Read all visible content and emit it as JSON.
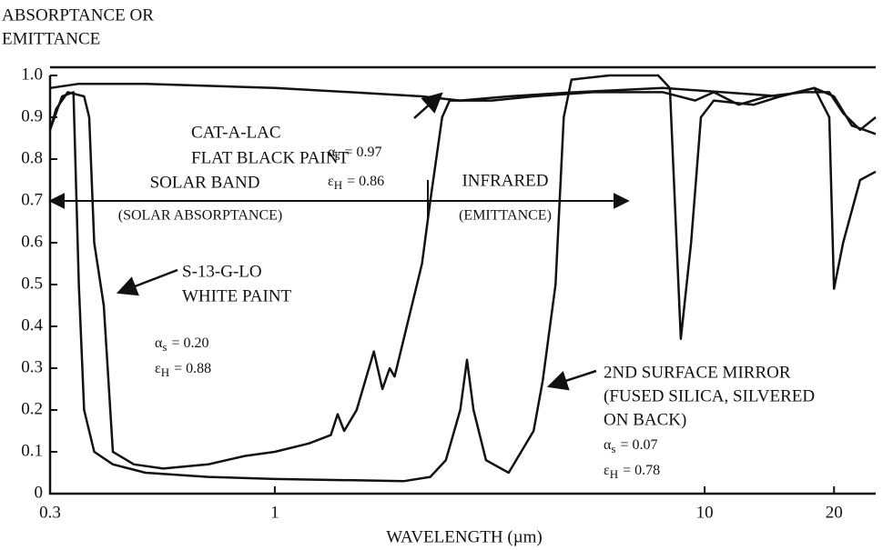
{
  "chart_data": {
    "type": "line",
    "y_label_lines": [
      "ABSORPTANCE OR",
      "EMITTANCE"
    ],
    "x_label": "WAVELENGTH (µm)",
    "x_log": true,
    "xlim": [
      0.3,
      25
    ],
    "xticks": [
      0.3,
      1,
      10,
      20
    ],
    "ylim": [
      0,
      1
    ],
    "yticks": [
      0,
      0.1,
      0.2,
      0.3,
      0.4,
      0.5,
      0.6,
      0.7,
      0.8,
      0.9,
      {
        "value": 1,
        "label": "1.0"
      }
    ],
    "series": [
      {
        "label_lines": [
          "CAT-A-LAC",
          "FLAT BLACK PAINT"
        ],
        "color": "#111111",
        "props": [
          {
            "symbol": "α",
            "sub": "s",
            "text": "= 0.97"
          },
          {
            "symbol": "ε",
            "sub": "H",
            "text": "= 0.86"
          }
        ],
        "x": [
          0.3,
          0.35,
          0.5,
          1,
          1.5,
          2.2,
          2.7,
          3.5,
          5,
          8,
          11,
          15,
          18,
          20,
          22,
          23.5,
          25
        ],
        "values": [
          0.97,
          0.98,
          0.98,
          0.97,
          0.96,
          0.95,
          0.94,
          0.95,
          0.96,
          0.97,
          0.96,
          0.95,
          0.97,
          0.95,
          0.88,
          0.87,
          0.86
        ]
      },
      {
        "label_lines": [
          "S-13-G-LO",
          "WHITE PAINT"
        ],
        "color": "#111111",
        "props": [
          {
            "symbol": "α",
            "sub": "s",
            "text": "= 0.20"
          },
          {
            "symbol": "ε",
            "sub": "H",
            "text": "= 0.88"
          }
        ],
        "x": [
          0.3,
          0.31,
          0.33,
          0.36,
          0.37,
          0.38,
          0.4,
          0.42,
          0.47,
          0.55,
          0.7,
          0.85,
          1,
          1.2,
          1.35,
          1.4,
          1.45,
          1.55,
          1.7,
          1.78,
          1.85,
          1.9,
          2.2,
          2.3,
          2.45,
          2.55,
          3.2,
          4,
          5.5,
          8,
          9.5,
          10.5,
          12,
          14,
          17,
          19.5,
          21,
          23,
          25
        ],
        "values": [
          0.87,
          0.92,
          0.96,
          0.95,
          0.9,
          0.6,
          0.45,
          0.1,
          0.07,
          0.06,
          0.07,
          0.09,
          0.1,
          0.12,
          0.14,
          0.19,
          0.15,
          0.2,
          0.34,
          0.25,
          0.3,
          0.28,
          0.55,
          0.7,
          0.9,
          0.94,
          0.94,
          0.95,
          0.96,
          0.96,
          0.94,
          0.96,
          0.93,
          0.95,
          0.96,
          0.96,
          0.91,
          0.87,
          0.9
        ]
      },
      {
        "label_lines": [
          "2ND SURFACE MIRROR",
          "(FUSED SILICA, SILVERED",
          "ON BACK)"
        ],
        "color": "#111111",
        "props": [
          {
            "symbol": "α",
            "sub": "s",
            "text": "= 0.07"
          },
          {
            "symbol": "ε",
            "sub": "H",
            "text": "= 0.78"
          }
        ],
        "x": [
          0.3,
          0.32,
          0.34,
          0.35,
          0.36,
          0.38,
          0.42,
          0.5,
          0.7,
          1,
          2,
          2.3,
          2.5,
          2.7,
          2.8,
          2.9,
          3.1,
          3.5,
          4,
          4.2,
          4.5,
          4.7,
          4.9,
          6,
          7.8,
          8.3,
          8.8,
          9.3,
          9.8,
          10.5,
          13,
          15,
          18,
          19.5,
          20,
          21,
          23,
          25
        ],
        "values": [
          0.87,
          0.95,
          0.96,
          0.5,
          0.2,
          0.1,
          0.07,
          0.05,
          0.04,
          0.035,
          0.03,
          0.04,
          0.08,
          0.2,
          0.32,
          0.2,
          0.08,
          0.05,
          0.15,
          0.27,
          0.5,
          0.9,
          0.99,
          1,
          1,
          0.97,
          0.37,
          0.6,
          0.9,
          0.94,
          0.93,
          0.95,
          0.97,
          0.9,
          0.49,
          0.6,
          0.75,
          0.77
        ]
      }
    ],
    "annotations": [
      "SOLAR BAND",
      "(SOLAR ABSORPTANCE)",
      "INFRARED",
      "(EMITTANCE)"
    ]
  }
}
